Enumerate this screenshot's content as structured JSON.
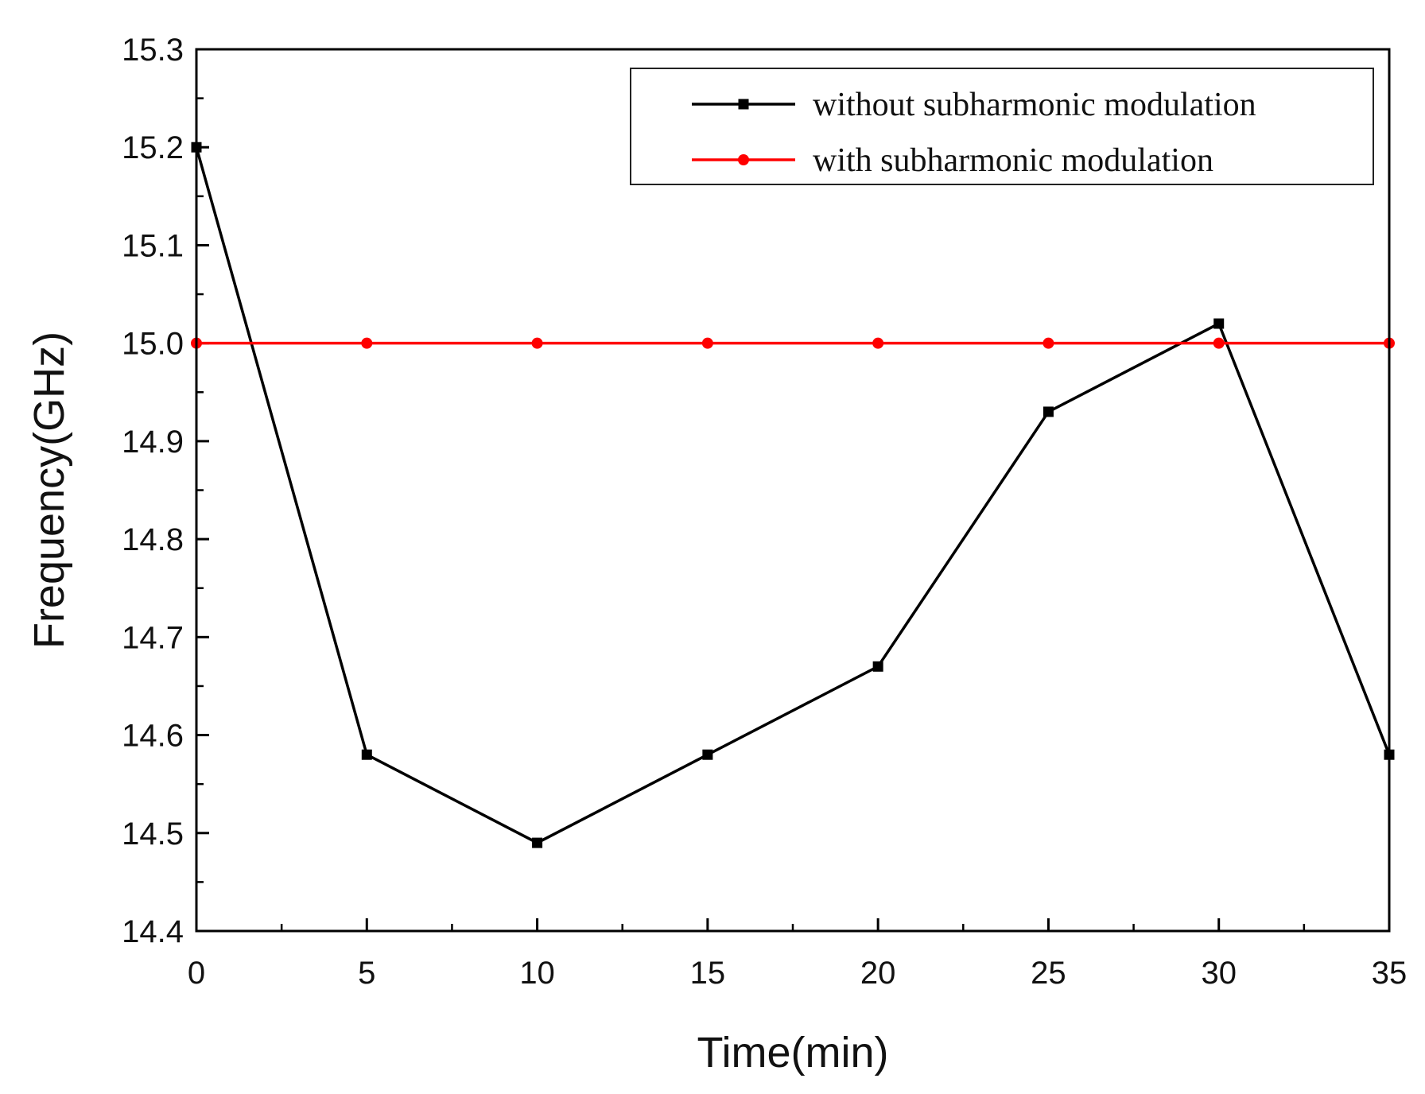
{
  "chart_data": {
    "type": "line",
    "xlabel": "Time(min)",
    "ylabel": "Frequency(GHz)",
    "xlim": [
      0,
      35
    ],
    "ylim": [
      14.4,
      15.3
    ],
    "xticks": [
      0,
      5,
      10,
      15,
      20,
      25,
      30,
      35
    ],
    "xtick_labels": [
      "0",
      "5",
      "10",
      "15",
      "20",
      "25",
      "30",
      "35"
    ],
    "yticks": [
      14.4,
      14.5,
      14.6,
      14.7,
      14.8,
      14.9,
      15.0,
      15.1,
      15.2,
      15.3
    ],
    "ytick_labels": [
      "14.4",
      "14.5",
      "14.6",
      "14.7",
      "14.8",
      "14.9",
      "15.0",
      "15.1",
      "15.2",
      "15.3"
    ],
    "x": [
      0,
      5,
      10,
      15,
      20,
      25,
      30,
      35
    ],
    "series": [
      {
        "name": "without subharmonic modulation",
        "color": "#000000",
        "marker": "square",
        "values": [
          15.2,
          14.58,
          14.49,
          14.58,
          14.67,
          14.93,
          15.02,
          14.58
        ]
      },
      {
        "name": "with subharmonic modulation",
        "color": "#ff0000",
        "marker": "circle",
        "values": [
          15.0,
          15.0,
          15.0,
          15.0,
          15.0,
          15.0,
          15.0,
          15.0
        ]
      }
    ],
    "legend_position": "top-right",
    "grid": false
  }
}
